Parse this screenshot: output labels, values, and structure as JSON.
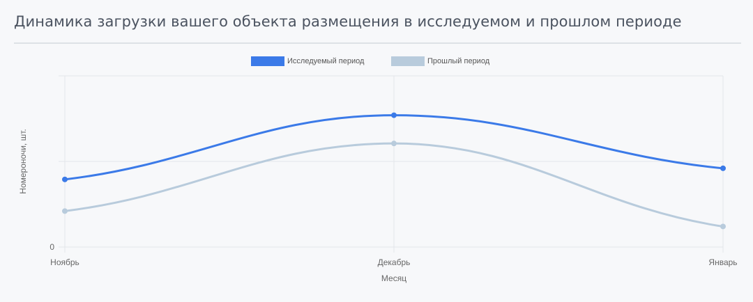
{
  "title": "Динамика загрузки вашего объекта размещения в исследуемом и прошлом периоде",
  "legend": [
    {
      "label": "Исследуемый период",
      "color": "#3b7ae8"
    },
    {
      "label": "Прошлый период",
      "color": "#b8cbdc"
    }
  ],
  "chart_data": {
    "type": "line",
    "title": "Динамика загрузки вашего объекта размещения в исследуемом и прошлом периоде",
    "categories": [
      "Ноябрь",
      "Декабрь",
      "Январь"
    ],
    "series": [
      {
        "name": "Исследуемый период",
        "color": "#3b7ae8",
        "values": [
          0.79,
          1.54,
          0.92
        ]
      },
      {
        "name": "Прошлый период",
        "color": "#b8cbdc",
        "values": [
          0.42,
          1.21,
          0.24
        ]
      }
    ],
    "xlabel": "Месяц",
    "ylabel": "Номероночи, шт.",
    "y_tick_labels": [
      "0"
    ],
    "ylim": [
      0,
      2
    ],
    "grid": true,
    "legend_position": "top",
    "curve": "smooth"
  }
}
